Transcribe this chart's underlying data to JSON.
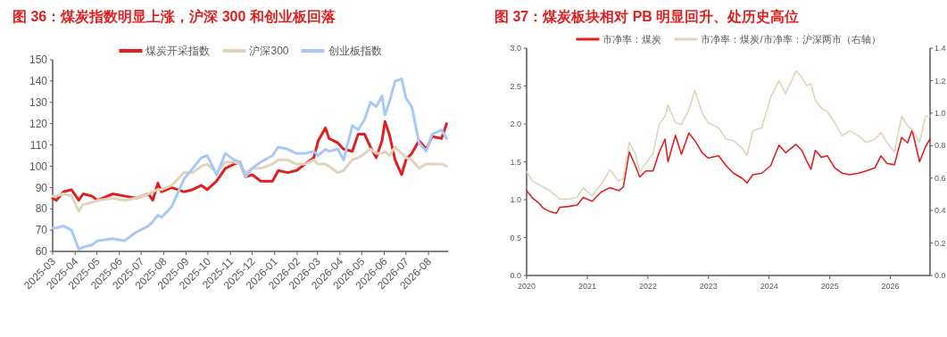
{
  "chart_data": [
    {
      "type": "line",
      "title": "图 36：煤炭指数明显上涨，沪深 300 和创业板回落",
      "legend": "top",
      "x": [
        "2025-03-01",
        "2025-03-06",
        "2025-03-16",
        "2025-03-27",
        "2025-04-06",
        "2025-04-12",
        "2025-04-24",
        "2025-05-02",
        "2025-05-23",
        "2025-06-08",
        "2025-06-24",
        "2025-07-11",
        "2025-07-17",
        "2025-07-24",
        "2025-07-29",
        "2025-08-12",
        "2025-08-29",
        "2025-09-10",
        "2025-09-22",
        "2025-09-30",
        "2025-10-13",
        "2025-10-25",
        "2025-11-06",
        "2025-11-14",
        "2025-11-22",
        "2025-12-01",
        "2025-12-13",
        "2025-12-29",
        "2026-01-06",
        "2026-01-19",
        "2026-01-31",
        "2026-02-12",
        "2026-02-24",
        "2026-03-02",
        "2026-03-12",
        "2026-03-17",
        "2026-03-29",
        "2026-04-06",
        "2026-04-18",
        "2026-04-26",
        "2026-05-05",
        "2026-05-13",
        "2026-05-21",
        "2026-05-29",
        "2026-06-02",
        "2026-06-08",
        "2026-06-16",
        "2026-06-25",
        "2026-07-01",
        "2026-07-09",
        "2026-07-19",
        "2026-07-29",
        "2026-08-06",
        "2026-08-19",
        "2026-08-26"
      ],
      "xlim": [
        "2025-03-01",
        "2026-08-28"
      ],
      "xticks": [
        {
          "value": "2025-03-01",
          "label": "2025-03"
        },
        {
          "value": "2025-04-01",
          "label": "2025-04"
        },
        {
          "value": "2025-05-01",
          "label": "2025-05"
        },
        {
          "value": "2025-06-01",
          "label": "2025-06"
        },
        {
          "value": "2025-07-01",
          "label": "2025-07"
        },
        {
          "value": "2025-08-01",
          "label": "2025-08"
        },
        {
          "value": "2025-09-01",
          "label": "2025-09"
        },
        {
          "value": "2025-10-01",
          "label": "2025-10"
        },
        {
          "value": "2025-11-01",
          "label": "2025-11"
        },
        {
          "value": "2025-12-01",
          "label": "2025-12"
        },
        {
          "value": "2026-01-01",
          "label": "2026-01"
        },
        {
          "value": "2026-02-01",
          "label": "2026-02"
        },
        {
          "value": "2026-03-01",
          "label": "2026-03"
        },
        {
          "value": "2026-04-01",
          "label": "2026-04"
        },
        {
          "value": "2026-05-01",
          "label": "2026-05"
        },
        {
          "value": "2026-06-01",
          "label": "2026-06"
        },
        {
          "value": "2026-07-01",
          "label": "2026-07"
        },
        {
          "value": "2026-08-01",
          "label": "2026-08"
        }
      ],
      "ylim": [
        60,
        150
      ],
      "yticks": [
        60,
        70,
        80,
        90,
        100,
        110,
        120,
        130,
        140,
        150
      ],
      "series": [
        {
          "name": "煤炭开采指数",
          "color": "#e02020",
          "values": [
            85,
            84,
            88,
            89,
            84,
            87,
            86,
            84,
            87,
            86,
            85,
            87,
            84,
            92,
            88,
            90,
            88,
            89,
            91,
            89,
            93,
            99,
            101,
            102,
            95,
            96,
            93,
            93,
            98,
            97,
            98,
            101,
            104,
            112,
            118,
            113,
            111,
            108,
            107,
            115,
            115,
            109,
            104,
            112,
            121,
            115,
            103,
            96,
            103,
            106,
            112,
            108,
            114,
            113,
            120
          ]
        },
        {
          "name": "沪深300",
          "color": "#e0d4bc",
          "values": [
            86,
            86,
            87,
            86,
            79,
            82,
            83,
            84,
            85,
            84,
            85,
            87,
            88,
            89,
            89,
            91,
            97,
            97,
            100,
            101,
            97,
            102,
            102,
            101,
            97,
            99,
            99,
            101,
            103,
            103,
            101,
            101,
            103,
            101,
            101,
            100,
            97,
            98,
            103,
            104,
            106,
            108,
            106,
            106,
            107,
            105,
            109,
            106,
            104,
            103,
            99,
            101,
            101,
            101,
            100
          ]
        },
        {
          "name": "创业板指数",
          "color": "#a8c8f8",
          "values": [
            71,
            71,
            72,
            70,
            61,
            62,
            63,
            65,
            66,
            65,
            69,
            72,
            74,
            77,
            76,
            81,
            94,
            99,
            104,
            105,
            96,
            106,
            103,
            102,
            95,
            99,
            102,
            105,
            109,
            108,
            106,
            106,
            107,
            105,
            108,
            107,
            108,
            103,
            119,
            117,
            122,
            130,
            128,
            133,
            124,
            130,
            140,
            141,
            132,
            128,
            111,
            107,
            115,
            117,
            113
          ]
        }
      ]
    },
    {
      "type": "line",
      "title": "图 37：煤炭板块相对 PB 明显回升、处历史高位",
      "legend": "top",
      "x": [
        "2020-01-01",
        "2020-02-06",
        "2020-03-13",
        "2020-04-09",
        "2020-05-24",
        "2020-06-28",
        "2020-07-20",
        "2020-09-08",
        "2020-11-01",
        "2020-12-07",
        "2021-01-30",
        "2021-03-25",
        "2021-05-17",
        "2021-07-10",
        "2021-08-06",
        "2021-09-11",
        "2021-10-17",
        "2021-11-13",
        "2021-12-19",
        "2022-02-01",
        "2022-03-09",
        "2022-04-14",
        "2022-05-02",
        "2022-06-16",
        "2022-07-22",
        "2022-09-05",
        "2022-10-11",
        "2022-11-24",
        "2022-12-30",
        "2023-03-03",
        "2023-04-17",
        "2023-06-01",
        "2023-07-25",
        "2023-08-21",
        "2023-09-25",
        "2023-11-18",
        "2024-01-11",
        "2024-03-01",
        "2024-04-10",
        "2024-06-12",
        "2024-07-17",
        "2024-08-13",
        "2024-09-09",
        "2024-10-06",
        "2024-11-11",
        "2024-12-17",
        "2025-01-31",
        "2025-03-17",
        "2025-04-30",
        "2025-06-23",
        "2025-08-07",
        "2025-09-30",
        "2025-11-05",
        "2025-12-11",
        "2026-01-25",
        "2026-03-10",
        "2026-04-15",
        "2026-05-12",
        "2026-06-26",
        "2026-08-01",
        "2026-08-28"
      ],
      "xlim": [
        "2020-01-01",
        "2026-08-28"
      ],
      "xticks": [
        {
          "value": "2020-01-01",
          "label": "2020"
        },
        {
          "value": "2021-01-01",
          "label": "2021"
        },
        {
          "value": "2022-01-01",
          "label": "2022"
        },
        {
          "value": "2023-01-01",
          "label": "2023"
        },
        {
          "value": "2024-01-01",
          "label": "2024"
        },
        {
          "value": "2025-01-01",
          "label": "2025"
        },
        {
          "value": "2026-01-01",
          "label": "2026"
        }
      ],
      "ylim": [
        0,
        3
      ],
      "yticks": [
        {
          "value": 0,
          "label": "0.0"
        },
        0.5,
        {
          "value": 1,
          "label": "1.0"
        },
        1.5,
        {
          "value": 2,
          "label": "2.0"
        },
        2.5,
        {
          "value": 3,
          "label": "3.0"
        }
      ],
      "y2lim": [
        0,
        1.4
      ],
      "y2ticks": [
        {
          "value": 0,
          "label": "0.0"
        },
        0.2,
        0.4,
        0.6,
        0.8,
        {
          "value": 1,
          "label": "1.0"
        },
        1.2,
        1.4
      ],
      "series": [
        {
          "name": "市净率：煤炭",
          "color": "#e02020",
          "values": [
            1.12,
            1.02,
            0.96,
            0.89,
            0.84,
            0.82,
            0.9,
            0.91,
            0.93,
            1.03,
            0.98,
            1.1,
            1.16,
            1.12,
            1.17,
            1.63,
            1.45,
            1.3,
            1.38,
            1.38,
            1.62,
            1.8,
            1.5,
            1.85,
            1.6,
            1.88,
            1.78,
            1.62,
            1.55,
            1.58,
            1.45,
            1.35,
            1.28,
            1.22,
            1.33,
            1.35,
            1.45,
            1.72,
            1.62,
            1.73,
            1.65,
            1.52,
            1.4,
            1.65,
            1.56,
            1.58,
            1.42,
            1.35,
            1.33,
            1.35,
            1.38,
            1.42,
            1.58,
            1.48,
            1.46,
            1.82,
            1.75,
            1.92,
            1.5,
            1.7,
            1.8
          ]
        },
        {
          "name": "市净率：煤炭/市净率：沪深两市（右轴）",
          "color": "#e0d4bc",
          "axis": "y2",
          "values": [
            0.64,
            0.58,
            0.56,
            0.545,
            0.52,
            0.49,
            0.47,
            0.47,
            0.48,
            0.54,
            0.49,
            0.56,
            0.65,
            0.58,
            0.6,
            0.82,
            0.75,
            0.64,
            0.69,
            0.75,
            0.93,
            0.98,
            1.05,
            0.94,
            0.93,
            1.02,
            1.14,
            1.0,
            0.94,
            0.91,
            0.84,
            0.83,
            0.78,
            0.74,
            0.89,
            0.91,
            1.1,
            1.2,
            1.12,
            1.26,
            1.22,
            1.17,
            1.18,
            1.08,
            1.03,
            1.01,
            0.94,
            0.86,
            0.89,
            0.86,
            0.82,
            0.84,
            0.88,
            0.82,
            0.76,
            0.98,
            0.92,
            0.9,
            0.82,
            0.98,
            0.98
          ]
        }
      ]
    }
  ]
}
